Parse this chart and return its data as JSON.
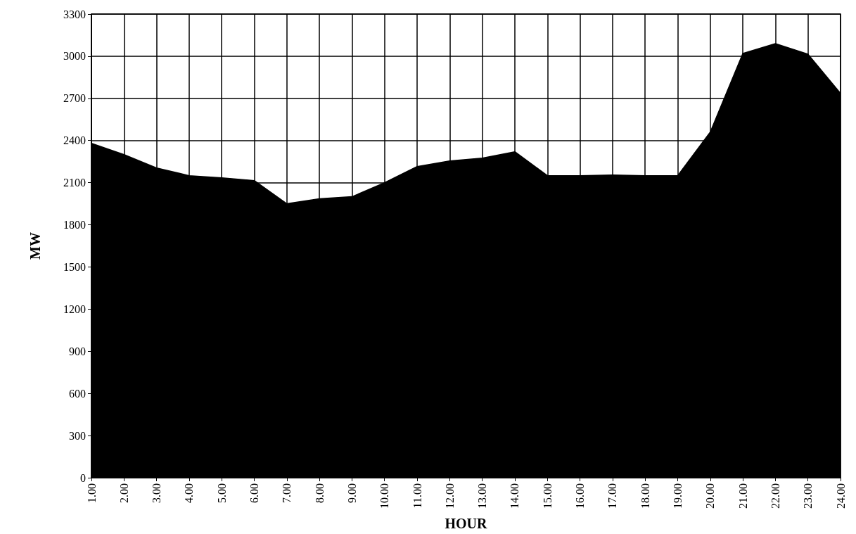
{
  "chart_data": {
    "type": "area",
    "xlabel": "HOUR",
    "ylabel": "MW",
    "categories": [
      "1.00",
      "2.00",
      "3.00",
      "4.00",
      "5.00",
      "6.00",
      "7.00",
      "8.00",
      "9.00",
      "10.00",
      "11.00",
      "12.00",
      "13.00",
      "14.00",
      "15.00",
      "16.00",
      "17.00",
      "18.00",
      "19.00",
      "20.00",
      "21.00",
      "22.00",
      "23.00",
      "24.00"
    ],
    "values": [
      2380,
      2300,
      2205,
      2150,
      2135,
      2115,
      1950,
      1985,
      2000,
      2100,
      2215,
      2255,
      2275,
      2320,
      2150,
      2150,
      2155,
      2150,
      2150,
      2460,
      3020,
      3090,
      3015,
      2735
    ],
    "color": "#000000",
    "ylim": [
      0,
      3300
    ],
    "yticks": [
      0,
      300,
      600,
      900,
      1200,
      1500,
      1800,
      2100,
      2400,
      2700,
      3000,
      3300
    ],
    "grid": true,
    "marker": "none"
  }
}
